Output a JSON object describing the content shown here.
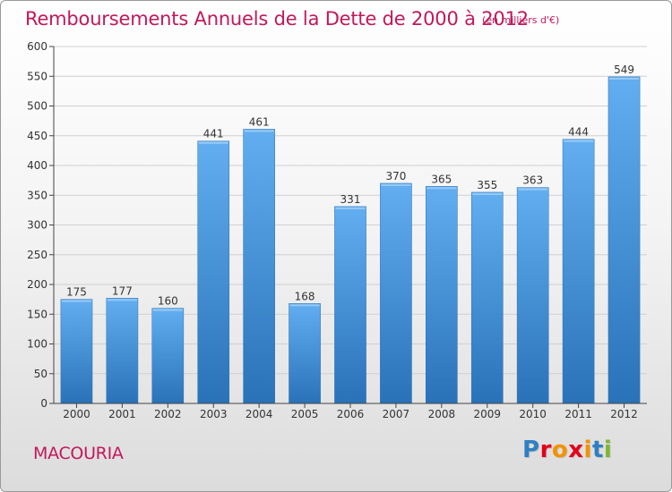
{
  "header": {
    "title": "Remboursements Annuels de la Dette de 2000 à 2012",
    "unit": "(en milliers d'€)"
  },
  "footer": {
    "commune": "MACOURIA",
    "logo_text": "Proxiti",
    "logo_colors": [
      "#2f7fc2",
      "#e2001a",
      "#f39200",
      "#e2001a",
      "#f39200",
      "#2f7fc2",
      "#7cb82f"
    ]
  },
  "chart_data": {
    "type": "bar",
    "title": "Remboursements Annuels de la Dette de 2000 à 2012",
    "xlabel": "",
    "ylabel": "",
    "categories": [
      "2000",
      "2001",
      "2002",
      "2003",
      "2004",
      "2005",
      "2006",
      "2007",
      "2008",
      "2009",
      "2010",
      "2011",
      "2012"
    ],
    "values": [
      175,
      177,
      160,
      441,
      461,
      168,
      331,
      370,
      365,
      355,
      363,
      444,
      549
    ],
    "ylim": [
      0,
      600
    ],
    "yticks": [
      0,
      50,
      100,
      150,
      200,
      250,
      300,
      350,
      400,
      450,
      500,
      550,
      600
    ],
    "grid": true,
    "bar_color": "#3b8fd6",
    "bar_color_dark": "#2a72b8",
    "title_color": "#c2185b"
  }
}
